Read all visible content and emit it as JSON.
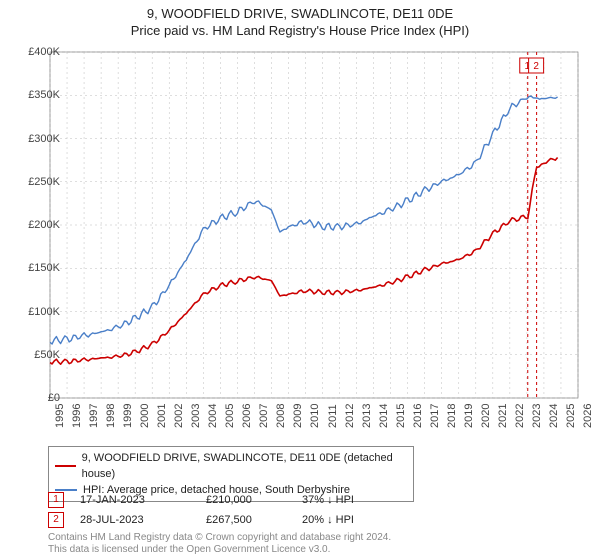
{
  "title": "9, WOODFIELD DRIVE, SWADLINCOTE, DE11 0DE",
  "subtitle": "Price paid vs. HM Land Registry's House Price Index (HPI)",
  "chart": {
    "type": "line",
    "xlim": [
      1995,
      2026
    ],
    "ylim": [
      0,
      400000
    ],
    "ytick_step": 50000,
    "yticks_labels": [
      "£0",
      "£50K",
      "£100K",
      "£150K",
      "£200K",
      "£250K",
      "£300K",
      "£350K",
      "£400K"
    ],
    "xticks": [
      1995,
      1996,
      1997,
      1998,
      1999,
      2000,
      2001,
      2002,
      2003,
      2004,
      2005,
      2006,
      2007,
      2008,
      2009,
      2010,
      2011,
      2012,
      2013,
      2014,
      2015,
      2016,
      2017,
      2018,
      2019,
      2020,
      2021,
      2022,
      2023,
      2024,
      2025,
      2026
    ],
    "background_color": "#ffffff",
    "grid_color": "#bdbdbd",
    "grid_dash": "2,3",
    "series": [
      {
        "id": "property",
        "label": "9, WOODFIELD DRIVE, SWADLINCOTE, DE11 0DE (detached house)",
        "color": "#cc0000",
        "width": 1.6,
        "data": [
          [
            1995,
            42000
          ],
          [
            1996,
            42000
          ],
          [
            1997,
            44000
          ],
          [
            1998,
            46000
          ],
          [
            1999,
            48000
          ],
          [
            2000,
            53000
          ],
          [
            2001,
            62000
          ],
          [
            2002,
            78000
          ],
          [
            2003,
            98000
          ],
          [
            2004,
            120000
          ],
          [
            2005,
            130000
          ],
          [
            2006,
            135000
          ],
          [
            2007,
            140000
          ],
          [
            2008,
            136000
          ],
          [
            2008.5,
            118000
          ],
          [
            2009,
            120000
          ],
          [
            2010,
            124000
          ],
          [
            2011,
            122000
          ],
          [
            2012,
            122000
          ],
          [
            2013,
            124000
          ],
          [
            2014,
            128000
          ],
          [
            2015,
            133000
          ],
          [
            2016,
            140000
          ],
          [
            2017,
            148000
          ],
          [
            2018,
            155000
          ],
          [
            2019,
            160000
          ],
          [
            2020,
            170000
          ],
          [
            2021,
            190000
          ],
          [
            2022,
            205000
          ],
          [
            2023.05,
            210000
          ],
          [
            2023.57,
            267500
          ],
          [
            2024,
            272000
          ],
          [
            2024.8,
            278000
          ]
        ]
      },
      {
        "id": "hpi",
        "label": "HPI: Average price, detached house, South Derbyshire",
        "color": "#4a7fc8",
        "width": 1.4,
        "data": [
          [
            1995,
            66000
          ],
          [
            1996,
            68000
          ],
          [
            1997,
            72000
          ],
          [
            1998,
            76000
          ],
          [
            1999,
            82000
          ],
          [
            2000,
            92000
          ],
          [
            2001,
            105000
          ],
          [
            2002,
            130000
          ],
          [
            2003,
            160000
          ],
          [
            2004,
            195000
          ],
          [
            2005,
            208000
          ],
          [
            2006,
            215000
          ],
          [
            2007,
            228000
          ],
          [
            2008,
            218000
          ],
          [
            2008.5,
            192000
          ],
          [
            2009,
            198000
          ],
          [
            2010,
            204000
          ],
          [
            2011,
            198000
          ],
          [
            2012,
            198000
          ],
          [
            2013,
            201000
          ],
          [
            2014,
            210000
          ],
          [
            2015,
            218000
          ],
          [
            2016,
            228000
          ],
          [
            2017,
            240000
          ],
          [
            2018,
            250000
          ],
          [
            2019,
            258000
          ],
          [
            2020,
            272000
          ],
          [
            2021,
            305000
          ],
          [
            2022,
            335000
          ],
          [
            2023,
            348000
          ],
          [
            2024,
            346000
          ],
          [
            2024.8,
            348000
          ]
        ]
      }
    ],
    "markers": [
      {
        "n": "1",
        "x": 2023.05,
        "y": 210000,
        "color": "#cc0000"
      },
      {
        "n": "2",
        "x": 2023.57,
        "y": 267500,
        "color": "#cc0000"
      }
    ],
    "marker_vlines_color": "#cc0000",
    "marker_vlines_dash": "3,3"
  },
  "legend": {
    "rows": [
      {
        "label": "9, WOODFIELD DRIVE, SWADLINCOTE, DE11 0DE (detached house)",
        "color": "#cc0000"
      },
      {
        "label": "HPI: Average price, detached house, South Derbyshire",
        "color": "#4a7fc8"
      }
    ]
  },
  "marker_table": [
    {
      "n": "1",
      "date": "17-JAN-2023",
      "price": "£210,000",
      "diff": "37%  ↓  HPI"
    },
    {
      "n": "2",
      "date": "28-JUL-2023",
      "price": "£267,500",
      "diff": "20%  ↓  HPI"
    }
  ],
  "attribution": {
    "line1": "Contains HM Land Registry data © Crown copyright and database right 2024.",
    "line2": "This data is licensed under the Open Government Licence v3.0."
  }
}
